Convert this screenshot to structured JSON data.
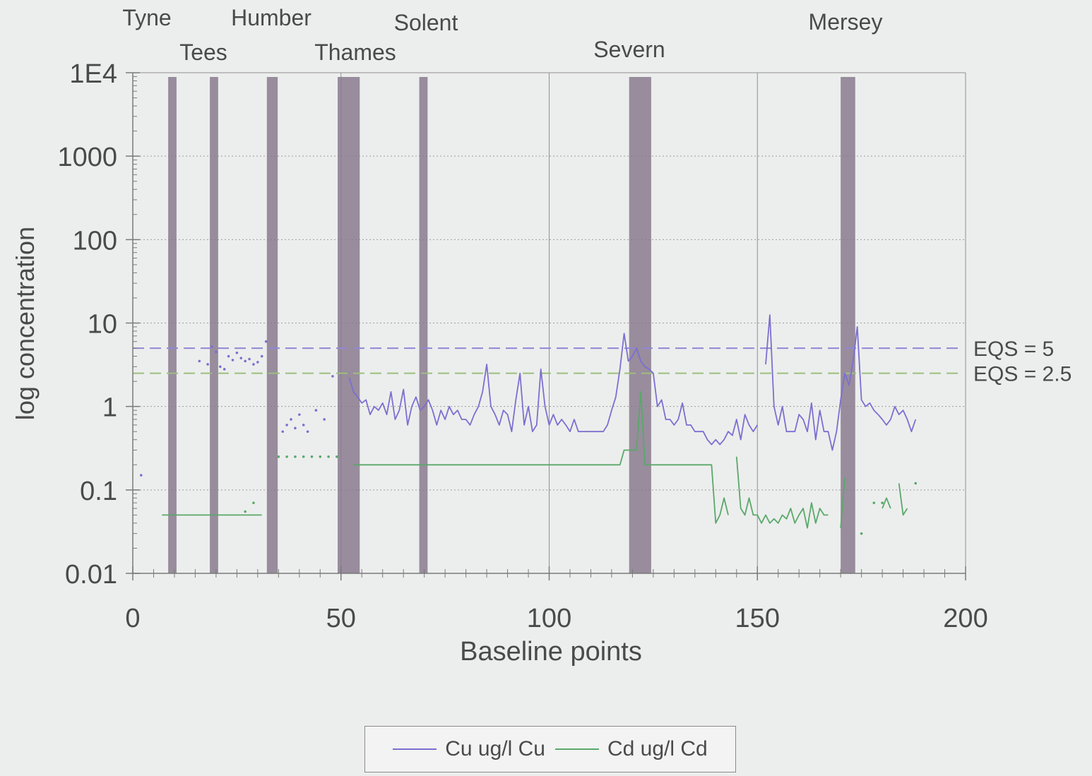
{
  "chart_data": {
    "type": "line",
    "title": "",
    "xlabel": "Baseline points",
    "ylabel": "log concentration",
    "xlim": [
      0,
      200
    ],
    "ylim": [
      0.01,
      10000
    ],
    "yscale": "log",
    "x_ticks": [
      0,
      50,
      100,
      150,
      200
    ],
    "x_tick_labels": [
      "0",
      "50",
      "100",
      "150",
      "200"
    ],
    "y_ticks": [
      0.01,
      0.1,
      1,
      10,
      100,
      1000,
      10000
    ],
    "y_tick_labels": [
      "0.01",
      "0.1",
      "1",
      "10",
      "100",
      "1000",
      "1E4"
    ],
    "grid": true,
    "legend_position": "bottom",
    "colors": {
      "cu": "#7b6fd0",
      "cd": "#5aa86a",
      "band": "#8a7a8e",
      "cu_eqs": "#9088d6",
      "cd_eqs": "#9dbe7e"
    },
    "estuaries": [
      {
        "name": "Tyne",
        "x_start": 8.5,
        "x_end": 10.5
      },
      {
        "name": "Tees",
        "x_start": 18.5,
        "x_end": 20.5
      },
      {
        "name": "Humber",
        "x_start": 32.2,
        "x_end": 34.8
      },
      {
        "name": "Thames",
        "x_start": 49.2,
        "x_end": 54.5
      },
      {
        "name": "Solent",
        "x_start": 68.8,
        "x_end": 70.8
      },
      {
        "name": "Severn",
        "x_start": 119.2,
        "x_end": 124.5
      },
      {
        "name": "Mersey",
        "x_start": 170.0,
        "x_end": 173.5
      }
    ],
    "reference_lines": [
      {
        "label": "EQS = 5",
        "value": 5,
        "series": "Cu"
      },
      {
        "label": "EQS = 2.5",
        "value": 2.5,
        "series": "Cd"
      }
    ],
    "series": [
      {
        "name": "Cu ug/l Cu",
        "points": [
          [
            52,
            2.2
          ],
          [
            53,
            1.5
          ],
          [
            54,
            1.3
          ],
          [
            55,
            1.1
          ],
          [
            56,
            1.2
          ],
          [
            57,
            0.8
          ],
          [
            58,
            1.0
          ],
          [
            59,
            0.9
          ],
          [
            60,
            1.1
          ],
          [
            61,
            0.8
          ],
          [
            62,
            1.5
          ],
          [
            63,
            0.7
          ],
          [
            64,
            0.9
          ],
          [
            65,
            1.6
          ],
          [
            66,
            0.6
          ],
          [
            67,
            1.0
          ],
          [
            68,
            1.3
          ],
          [
            69,
            0.9
          ],
          [
            70,
            1.0
          ],
          [
            71,
            1.2
          ],
          [
            72,
            0.9
          ],
          [
            73,
            0.6
          ],
          [
            74,
            0.9
          ],
          [
            75,
            0.7
          ],
          [
            76,
            1.0
          ],
          [
            77,
            0.8
          ],
          [
            78,
            0.9
          ],
          [
            79,
            0.7
          ],
          [
            80,
            0.7
          ],
          [
            81,
            0.6
          ],
          [
            82,
            0.8
          ],
          [
            83,
            1.0
          ],
          [
            84,
            1.5
          ],
          [
            85,
            3.2
          ],
          [
            86,
            1.0
          ],
          [
            87,
            0.8
          ],
          [
            88,
            0.6
          ],
          [
            89,
            0.9
          ],
          [
            90,
            0.8
          ],
          [
            91,
            0.5
          ],
          [
            92,
            1.2
          ],
          [
            93,
            2.5
          ],
          [
            94,
            0.6
          ],
          [
            95,
            1.0
          ],
          [
            96,
            0.5
          ],
          [
            97,
            0.6
          ],
          [
            98,
            2.8
          ],
          [
            99,
            1.0
          ],
          [
            100,
            0.6
          ],
          [
            101,
            0.8
          ],
          [
            102,
            0.6
          ],
          [
            103,
            0.7
          ],
          [
            104,
            0.6
          ],
          [
            105,
            0.5
          ],
          [
            106,
            0.7
          ],
          [
            107,
            0.5
          ],
          [
            108,
            0.5
          ],
          [
            109,
            0.5
          ],
          [
            110,
            0.5
          ],
          [
            111,
            0.5
          ],
          [
            112,
            0.5
          ],
          [
            113,
            0.5
          ],
          [
            114,
            0.6
          ],
          [
            115,
            0.9
          ],
          [
            116,
            1.3
          ],
          [
            117,
            2.8
          ],
          [
            118,
            7.5
          ],
          [
            119,
            3.5
          ],
          [
            120,
            4.0
          ],
          [
            121,
            5.0
          ],
          [
            122,
            3.5
          ],
          [
            123,
            3.0
          ],
          [
            124,
            2.8
          ],
          [
            125,
            2.5
          ],
          [
            126,
            1.0
          ],
          [
            127,
            1.2
          ],
          [
            128,
            0.7
          ],
          [
            129,
            0.7
          ],
          [
            130,
            0.6
          ],
          [
            131,
            0.7
          ],
          [
            132,
            1.1
          ],
          [
            133,
            0.6
          ],
          [
            134,
            0.6
          ],
          [
            135,
            0.5
          ],
          [
            136,
            0.5
          ],
          [
            137,
            0.5
          ],
          [
            138,
            0.4
          ],
          [
            139,
            0.35
          ],
          [
            140,
            0.4
          ],
          [
            141,
            0.35
          ],
          [
            142,
            0.4
          ],
          [
            143,
            0.5
          ],
          [
            144,
            0.45
          ],
          [
            145,
            0.7
          ],
          [
            146,
            0.4
          ],
          [
            147,
            0.8
          ],
          [
            148,
            0.6
          ],
          [
            149,
            0.5
          ],
          [
            150,
            0.6
          ],
          [
            null,
            null
          ],
          [
            152,
            3.2
          ],
          [
            153,
            12.5
          ],
          [
            154,
            1.0
          ],
          [
            155,
            0.6
          ],
          [
            156,
            1.0
          ],
          [
            157,
            0.5
          ],
          [
            158,
            0.5
          ],
          [
            159,
            0.5
          ],
          [
            160,
            0.8
          ],
          [
            161,
            0.7
          ],
          [
            162,
            0.5
          ],
          [
            163,
            1.1
          ],
          [
            164,
            0.4
          ],
          [
            165,
            0.9
          ],
          [
            166,
            0.5
          ],
          [
            167,
            0.5
          ],
          [
            168,
            0.3
          ],
          [
            169,
            0.5
          ],
          [
            170,
            1.2
          ],
          [
            171,
            2.5
          ],
          [
            172,
            1.8
          ],
          [
            173,
            3.5
          ],
          [
            174,
            9.0
          ],
          [
            175,
            1.2
          ],
          [
            176,
            1.0
          ],
          [
            177,
            1.1
          ],
          [
            178,
            0.9
          ],
          [
            179,
            0.8
          ],
          [
            180,
            0.7
          ],
          [
            181,
            0.6
          ],
          [
            182,
            0.7
          ],
          [
            183,
            1.0
          ],
          [
            184,
            0.8
          ],
          [
            185,
            0.9
          ],
          [
            186,
            0.7
          ],
          [
            187,
            0.5
          ],
          [
            188,
            0.7
          ]
        ],
        "scatter_points": [
          [
            2,
            0.15
          ],
          [
            16,
            3.5
          ],
          [
            18,
            3.2
          ],
          [
            19,
            5.2
          ],
          [
            20,
            4.5
          ],
          [
            21,
            3.0
          ],
          [
            22,
            2.8
          ],
          [
            23,
            4.0
          ],
          [
            24,
            3.6
          ],
          [
            25,
            4.4
          ],
          [
            26,
            3.8
          ],
          [
            27,
            3.5
          ],
          [
            28,
            3.7
          ],
          [
            29,
            3.2
          ],
          [
            30,
            3.4
          ],
          [
            31,
            4.0
          ],
          [
            32,
            6.0
          ],
          [
            36,
            0.5
          ],
          [
            37,
            0.6
          ],
          [
            38,
            0.7
          ],
          [
            39,
            0.55
          ],
          [
            40,
            0.8
          ],
          [
            41,
            0.6
          ],
          [
            42,
            0.5
          ],
          [
            44,
            0.9
          ],
          [
            46,
            0.7
          ],
          [
            48,
            2.3
          ]
        ]
      },
      {
        "name": "Cd ug/l Cd",
        "points": [
          [
            7,
            0.05
          ],
          [
            31,
            0.05
          ],
          [
            null,
            null
          ],
          [
            53,
            0.2
          ],
          [
            117,
            0.2
          ],
          [
            118,
            0.3
          ],
          [
            121,
            0.3
          ],
          [
            122,
            1.5
          ],
          [
            123,
            0.2
          ],
          [
            139,
            0.2
          ],
          [
            140,
            0.04
          ],
          [
            141,
            0.05
          ],
          [
            142,
            0.08
          ],
          [
            143,
            0.05
          ],
          [
            null,
            null
          ],
          [
            145,
            0.25
          ],
          [
            146,
            0.06
          ],
          [
            147,
            0.05
          ],
          [
            148,
            0.08
          ],
          [
            149,
            0.05
          ],
          [
            150,
            0.05
          ],
          [
            151,
            0.04
          ],
          [
            152,
            0.05
          ],
          [
            153,
            0.04
          ],
          [
            154,
            0.045
          ],
          [
            155,
            0.04
          ],
          [
            156,
            0.05
          ],
          [
            157,
            0.045
          ],
          [
            158,
            0.06
          ],
          [
            159,
            0.04
          ],
          [
            160,
            0.05
          ],
          [
            161,
            0.06
          ],
          [
            162,
            0.035
          ],
          [
            163,
            0.07
          ],
          [
            164,
            0.04
          ],
          [
            165,
            0.06
          ],
          [
            166,
            0.05
          ],
          [
            167,
            0.05
          ],
          [
            null,
            null
          ],
          [
            170,
            0.035
          ],
          [
            171,
            0.14
          ],
          [
            null,
            null
          ],
          [
            180,
            0.06
          ],
          [
            181,
            0.08
          ],
          [
            182,
            0.06
          ],
          [
            null,
            null
          ],
          [
            184,
            0.12
          ],
          [
            185,
            0.05
          ],
          [
            186,
            0.06
          ]
        ],
        "scatter_points": [
          [
            27,
            0.055
          ],
          [
            29,
            0.07
          ],
          [
            35,
            0.25
          ],
          [
            37,
            0.25
          ],
          [
            39,
            0.25
          ],
          [
            41,
            0.25
          ],
          [
            43,
            0.25
          ],
          [
            45,
            0.25
          ],
          [
            47,
            0.25
          ],
          [
            49,
            0.25
          ],
          [
            175,
            0.03
          ],
          [
            178,
            0.07
          ],
          [
            180,
            0.07
          ],
          [
            188,
            0.12
          ]
        ]
      }
    ]
  }
}
